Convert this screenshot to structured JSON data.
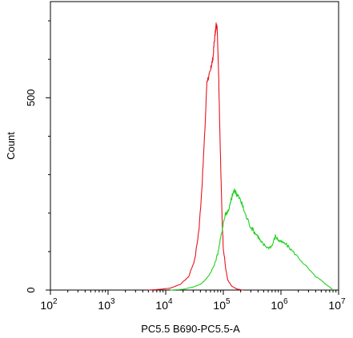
{
  "chart_data": {
    "type": "area",
    "xlabel": "PC5.5 B690-PC5.5-A",
    "ylabel": "Count",
    "x_scale": "log",
    "xlim": [
      100,
      10000000
    ],
    "ylim": [
      0,
      750
    ],
    "x_ticks": [
      {
        "value": 100,
        "base": "10",
        "exp": "2"
      },
      {
        "value": 1000,
        "base": "10",
        "exp": "3"
      },
      {
        "value": 10000,
        "base": "10",
        "exp": "4"
      },
      {
        "value": 100000,
        "base": "10",
        "exp": "5"
      },
      {
        "value": 1000000,
        "base": "10",
        "exp": "6"
      },
      {
        "value": 10000000,
        "base": "10",
        "exp": "7"
      }
    ],
    "y_ticks": [
      {
        "value": 0,
        "label": "0"
      },
      {
        "value": 500,
        "label": "500"
      }
    ],
    "grid": false,
    "legend": "none",
    "series": [
      {
        "color": "#e8141c",
        "x": [
          5000,
          8000,
          12000,
          18000,
          25000,
          32000,
          38000,
          43000,
          48000,
          52000,
          56000,
          60000,
          63000,
          66000,
          69000,
          72000,
          75000,
          78000,
          80000,
          83000,
          86000,
          90000,
          95000,
          100000,
          110000,
          120000,
          140000,
          170000,
          220000
        ],
        "y": [
          0,
          2,
          5,
          15,
          35,
          80,
          160,
          280,
          420,
          545,
          555,
          570,
          590,
          600,
          640,
          665,
          690,
          680,
          640,
          560,
          450,
          320,
          190,
          110,
          55,
          25,
          10,
          3,
          0
        ]
      },
      {
        "color": "#20d020",
        "x": [
          12000,
          20000,
          30000,
          40000,
          50000,
          60000,
          70000,
          80000,
          90000,
          100000,
          110000,
          120000,
          130000,
          140000,
          150000,
          160000,
          170000,
          180000,
          200000,
          220000,
          250000,
          300000,
          350000,
          400000,
          450000,
          500000,
          600000,
          700000,
          800000,
          900000,
          1000000,
          1200000,
          1500000,
          2000000,
          3000000,
          4000000,
          5000000,
          6000000,
          7000000,
          8000000
        ],
        "y": [
          0,
          2,
          8,
          15,
          28,
          45,
          65,
          95,
          135,
          175,
          200,
          205,
          220,
          240,
          255,
          258,
          250,
          245,
          232,
          215,
          190,
          165,
          150,
          140,
          125,
          118,
          110,
          115,
          140,
          130,
          125,
          120,
          105,
          85,
          55,
          35,
          25,
          15,
          8,
          0
        ]
      }
    ]
  }
}
